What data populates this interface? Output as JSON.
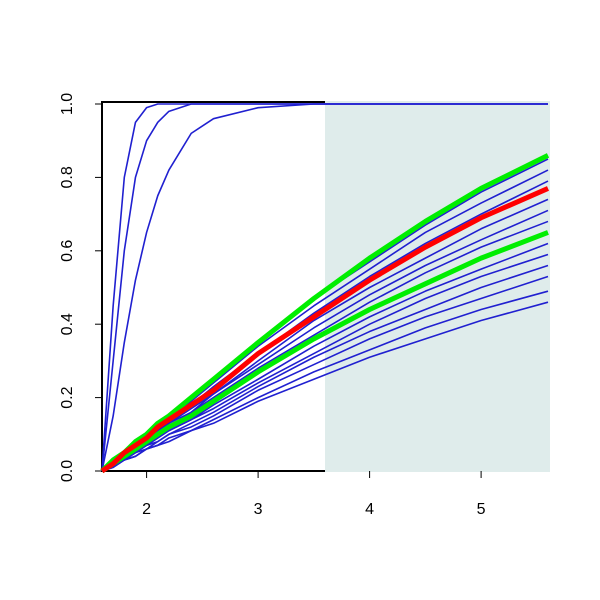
{
  "chart_data": {
    "type": "line",
    "x": [
      1.6,
      1.7,
      1.8,
      1.9,
      2.0,
      2.1,
      2.2,
      2.4,
      2.6,
      3.0,
      3.5,
      4.0,
      4.5,
      5.0,
      5.6
    ],
    "xlim": [
      1.6,
      5.6
    ],
    "xticks": [
      2,
      3,
      4,
      5
    ],
    "ylim": [
      0,
      1
    ],
    "yticks": [
      {
        "value": 0,
        "label": "0.0"
      },
      0.2,
      0.4,
      0.6,
      0.8,
      {
        "value": 1,
        "label": "1.0"
      }
    ],
    "shade": {
      "from": 3.6,
      "to": 5.6,
      "color": "#dfeceb"
    },
    "series": [
      {
        "color": "#2020d0",
        "values": [
          0,
          0.45,
          0.8,
          0.95,
          0.99,
          1,
          1,
          1,
          1,
          1,
          1,
          1,
          1,
          1,
          1
        ]
      },
      {
        "color": "#2020d0",
        "values": [
          0,
          0.3,
          0.6,
          0.8,
          0.9,
          0.95,
          0.98,
          1,
          1,
          1,
          1,
          1,
          1,
          1,
          1
        ]
      },
      {
        "color": "#2020d0",
        "values": [
          0,
          0.15,
          0.35,
          0.52,
          0.65,
          0.75,
          0.82,
          0.92,
          0.96,
          0.99,
          1,
          1,
          1,
          1,
          1
        ]
      },
      {
        "color": "#2020d0",
        "values": [
          0,
          0.03,
          0.05,
          0.08,
          0.1,
          0.13,
          0.15,
          0.2,
          0.25,
          0.35,
          0.47,
          0.57,
          0.67,
          0.76,
          0.85
        ]
      },
      {
        "color": "#2020d0",
        "values": [
          0,
          0.02,
          0.05,
          0.07,
          0.1,
          0.12,
          0.15,
          0.19,
          0.24,
          0.34,
          0.45,
          0.55,
          0.65,
          0.73,
          0.82
        ]
      },
      {
        "color": "#2020d0",
        "values": [
          0,
          0.02,
          0.05,
          0.07,
          0.09,
          0.12,
          0.14,
          0.18,
          0.23,
          0.32,
          0.43,
          0.53,
          0.62,
          0.7,
          0.79
        ]
      },
      {
        "color": "#2020d0",
        "values": [
          0,
          0.02,
          0.04,
          0.07,
          0.09,
          0.11,
          0.13,
          0.17,
          0.21,
          0.3,
          0.41,
          0.5,
          0.58,
          0.66,
          0.74
        ]
      },
      {
        "color": "#2020d0",
        "values": [
          0,
          0.02,
          0.04,
          0.06,
          0.09,
          0.11,
          0.13,
          0.16,
          0.21,
          0.29,
          0.39,
          0.48,
          0.56,
          0.63,
          0.71
        ]
      },
      {
        "color": "#2020d0",
        "values": [
          0,
          0.02,
          0.04,
          0.06,
          0.08,
          0.1,
          0.12,
          0.16,
          0.2,
          0.28,
          0.37,
          0.46,
          0.54,
          0.61,
          0.68
        ]
      },
      {
        "color": "#2020d0",
        "values": [
          0,
          0.02,
          0.04,
          0.06,
          0.07,
          0.09,
          0.11,
          0.14,
          0.18,
          0.25,
          0.34,
          0.42,
          0.49,
          0.55,
          0.62
        ]
      },
      {
        "color": "#2020d0",
        "values": [
          0,
          0.02,
          0.04,
          0.05,
          0.07,
          0.09,
          0.11,
          0.14,
          0.17,
          0.24,
          0.32,
          0.4,
          0.47,
          0.53,
          0.59
        ]
      },
      {
        "color": "#2020d0",
        "values": [
          0,
          0.02,
          0.03,
          0.05,
          0.07,
          0.08,
          0.1,
          0.13,
          0.16,
          0.23,
          0.31,
          0.38,
          0.44,
          0.5,
          0.56
        ]
      },
      {
        "color": "#2020d0",
        "values": [
          0,
          0.02,
          0.03,
          0.05,
          0.06,
          0.08,
          0.1,
          0.12,
          0.15,
          0.22,
          0.29,
          0.36,
          0.42,
          0.47,
          0.53
        ]
      },
      {
        "color": "#2020d0",
        "values": [
          0,
          0.01,
          0.03,
          0.04,
          0.06,
          0.07,
          0.09,
          0.11,
          0.14,
          0.2,
          0.27,
          0.33,
          0.39,
          0.44,
          0.49
        ]
      },
      {
        "color": "#2020d0",
        "values": [
          0,
          0.01,
          0.03,
          0.04,
          0.06,
          0.07,
          0.08,
          0.11,
          0.13,
          0.19,
          0.25,
          0.31,
          0.36,
          0.41,
          0.46
        ]
      },
      {
        "color": "#00ee00",
        "highlight": true,
        "values": [
          0,
          0.03,
          0.05,
          0.08,
          0.1,
          0.13,
          0.15,
          0.2,
          0.25,
          0.35,
          0.47,
          0.58,
          0.68,
          0.77,
          0.86
        ]
      },
      {
        "color": "#00ee00",
        "highlight": true,
        "values": [
          0,
          0.02,
          0.04,
          0.06,
          0.08,
          0.1,
          0.12,
          0.15,
          0.19,
          0.27,
          0.36,
          0.44,
          0.51,
          0.58,
          0.65
        ]
      },
      {
        "color": "#ff0000",
        "highlight": true,
        "values": [
          0,
          0.02,
          0.05,
          0.07,
          0.09,
          0.12,
          0.14,
          0.18,
          0.22,
          0.32,
          0.42,
          0.52,
          0.61,
          0.69,
          0.77
        ]
      }
    ]
  }
}
